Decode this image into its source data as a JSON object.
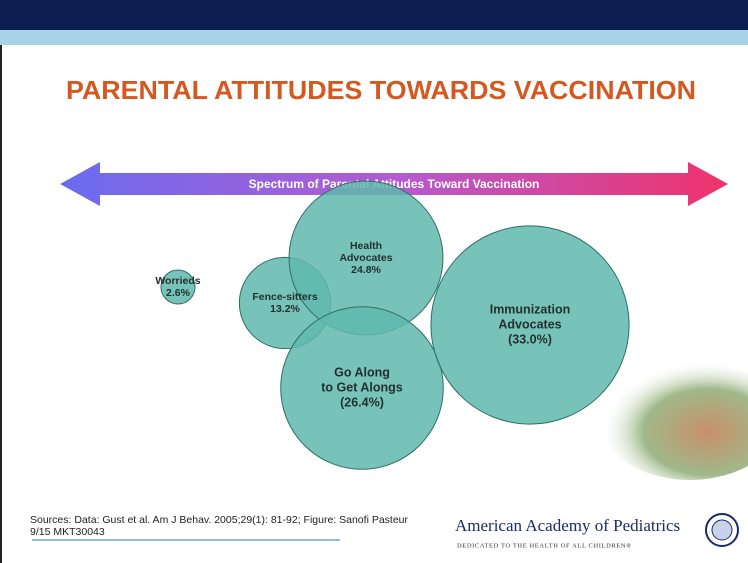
{
  "chart_data": {
    "type": "bubble",
    "title": "PARENTAL ATTITUDES TOWARDS VACCINATION",
    "subtitle": "Spectrum of Parental Attitudes Toward Vaccination",
    "labels": [
      [
        "Worrieds"
      ],
      [
        "Fence-sitters"
      ],
      [
        "Health",
        "Advocates"
      ],
      [
        "Go Along",
        "to Get Alongs"
      ],
      [
        "Immunization",
        "Advocates"
      ]
    ],
    "values": [
      2.6,
      13.2,
      24.8,
      26.4,
      33.0
    ],
    "value_labels": [
      "2.6%",
      "13.2%",
      "24.8%",
      "(26.4%)",
      "(33.0%)"
    ],
    "color": "#5fb8ad",
    "source": "Sources: Data: Gust et al. Am J Behav. 2005;29(1): 81-92; Figure: Sanofi Pasteur 9/15 MKT30043",
    "logo": {
      "name": "American Academy of Pediatrics",
      "tagline": "DEDICATED TO THE HEALTH OF ALL CHILDREN®"
    }
  }
}
